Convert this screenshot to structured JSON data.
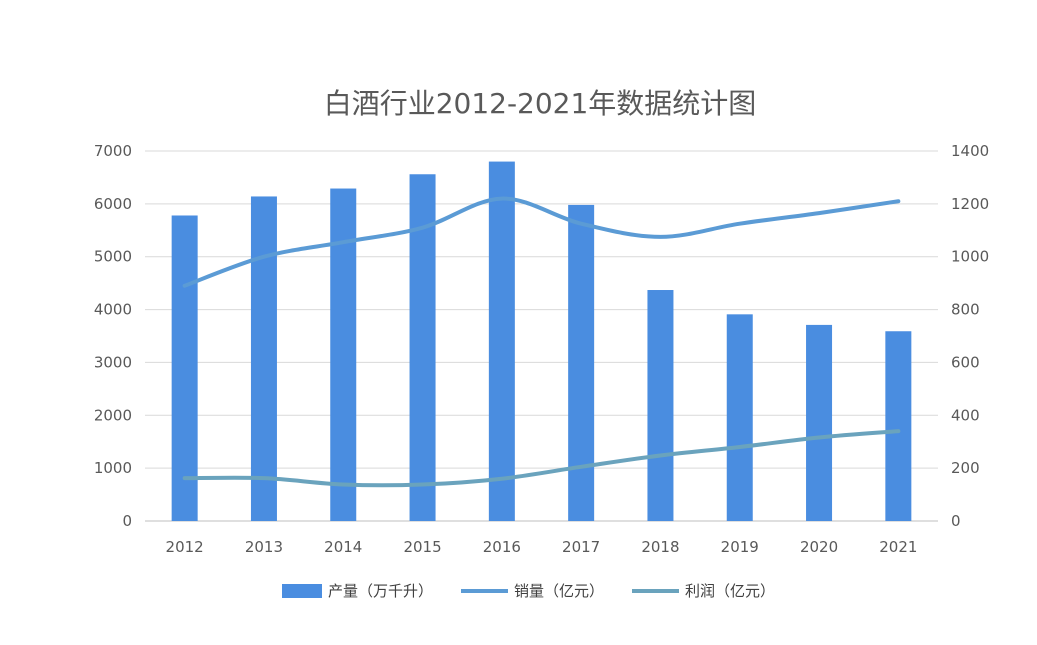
{
  "chart_data": {
    "type": "bar",
    "title": "白酒行业2012-2021年数据统计图",
    "categories": [
      "2012",
      "2013",
      "2014",
      "2015",
      "2016",
      "2017",
      "2018",
      "2019",
      "2020",
      "2021"
    ],
    "ylim_left": [
      0,
      7000
    ],
    "ylim_right": [
      0,
      1400
    ],
    "yticks_left": [
      "0",
      "1000",
      "2000",
      "3000",
      "4000",
      "5000",
      "6000",
      "7000"
    ],
    "yticks_right": [
      "0",
      "200",
      "400",
      "600",
      "800",
      "1000",
      "1200",
      "1400"
    ],
    "grid": true,
    "legend_position": "bottom",
    "series": [
      {
        "name": "产量（万千升）",
        "type": "bar",
        "axis": "left",
        "color": "#4a8de0",
        "values": [
          5780,
          6140,
          6290,
          6560,
          6800,
          5980,
          4370,
          3910,
          3710,
          3590
        ]
      },
      {
        "name": "销量（亿元）",
        "type": "line",
        "axis": "right",
        "color": "#5b9bd5",
        "values": [
          890,
          1000,
          1055,
          1110,
          1220,
          1125,
          1075,
          1125,
          1165,
          1210
        ]
      },
      {
        "name": "利润（亿元）",
        "type": "line",
        "axis": "right",
        "color": "#6aa3bd",
        "values": [
          162,
          162,
          138,
          138,
          160,
          205,
          248,
          280,
          316,
          340
        ]
      }
    ]
  }
}
